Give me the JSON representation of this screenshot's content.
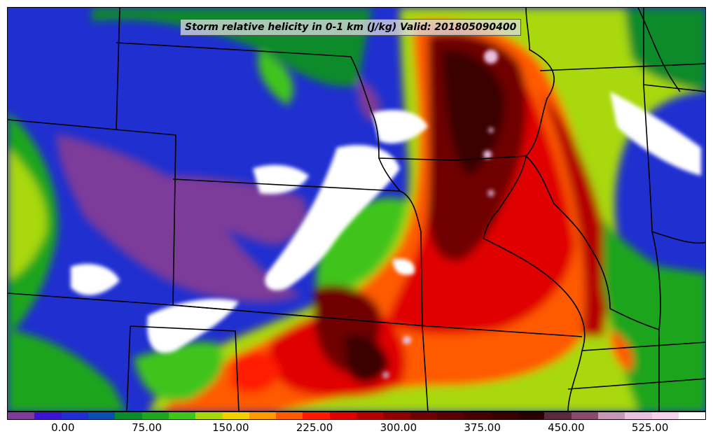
{
  "title": "Storm relative helicity in 0-1 km (J/kg) Valid: 201805090400",
  "colorbar": {
    "min": -50,
    "max": 575,
    "step": 25,
    "colors": [
      "#7d3a9a",
      "#3a14d0",
      "#1f2fd0",
      "#0a4fb0",
      "#0a8a2a",
      "#1fa51f",
      "#3fc41a",
      "#a8d80a",
      "#f0d000",
      "#ff9a00",
      "#ff5a00",
      "#ff1a00",
      "#e00000",
      "#b40000",
      "#900000",
      "#700000",
      "#5a0000",
      "#480000",
      "#3a0000",
      "#2a0000",
      "#5a2a3a",
      "#8c4a6a",
      "#c896b8",
      "#e8c0e0",
      "#f4d4ec",
      "#ffffff"
    ],
    "tick_labels": [
      "0.00",
      "75.00",
      "150.00",
      "225.00",
      "300.00",
      "375.00",
      "450.00",
      "525.00"
    ],
    "tick_values": [
      0,
      75,
      150,
      225,
      300,
      375,
      450,
      525
    ]
  }
}
